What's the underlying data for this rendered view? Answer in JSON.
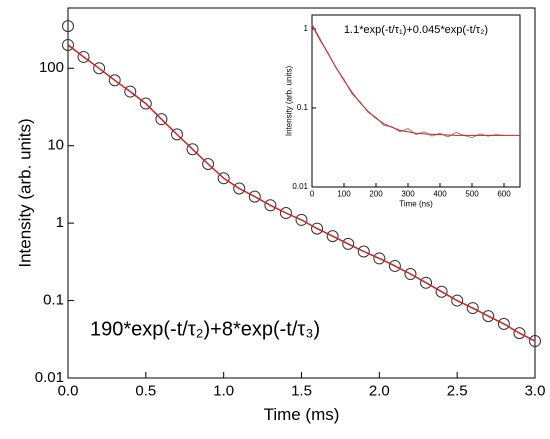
{
  "chart_data": [
    {
      "type": "line",
      "xlabel": "Time (ms)",
      "ylabel": "Intensity (arb. units)",
      "annotation": "190*exp(-t/τ₂)+8*exp(-t/τ₃)",
      "xlim": [
        0,
        3.0
      ],
      "ylim": [
        0.01,
        600
      ],
      "log_y": true,
      "xticks": [
        {
          "value": 0,
          "label": "0.0"
        },
        0.5,
        {
          "value": 1,
          "label": "1.0"
        },
        1.5,
        {
          "value": 2,
          "label": "2.0"
        },
        2.5,
        {
          "value": 3,
          "label": "3.0"
        }
      ],
      "yticks": [
        0.01,
        0.1,
        1,
        10,
        100
      ],
      "series": [
        {
          "color": "#333333",
          "marker": "circle",
          "x": [
            0,
            0,
            0.1,
            0.2,
            0.3,
            0.4,
            0.5,
            0.6,
            0.7,
            0.8,
            0.9,
            1.0,
            1.1,
            1.2,
            1.3,
            1.4,
            1.5,
            1.6,
            1.7,
            1.8,
            1.9,
            2.0,
            2.1,
            2.2,
            2.3,
            2.4,
            2.5,
            2.6,
            2.7,
            2.8,
            2.9,
            3.0
          ],
          "values": [
            350,
            200,
            140,
            100,
            70,
            50,
            35,
            22,
            14,
            9,
            5.8,
            3.8,
            2.8,
            2.2,
            1.7,
            1.35,
            1.1,
            0.85,
            0.68,
            0.54,
            0.43,
            0.35,
            0.28,
            0.22,
            0.17,
            0.13,
            0.1,
            0.08,
            0.063,
            0.05,
            0.038,
            0.03
          ]
        },
        {
          "color": "#d02020",
          "marker": "none",
          "x": [
            0,
            0.1,
            0.2,
            0.3,
            0.4,
            0.5,
            0.6,
            0.7,
            0.8,
            0.9,
            1.0,
            1.1,
            1.2,
            1.3,
            1.4,
            1.5,
            1.6,
            1.7,
            1.8,
            1.9,
            2.0,
            2.1,
            2.2,
            2.3,
            2.4,
            2.5,
            2.6,
            2.7,
            2.8,
            2.9,
            3.0
          ],
          "values": [
            200,
            140,
            100,
            70,
            50,
            35,
            22,
            14,
            9,
            5.8,
            3.8,
            2.8,
            2.2,
            1.7,
            1.35,
            1.1,
            0.85,
            0.68,
            0.54,
            0.43,
            0.35,
            0.28,
            0.22,
            0.17,
            0.13,
            0.1,
            0.08,
            0.063,
            0.05,
            0.038,
            0.03
          ]
        }
      ]
    },
    {
      "type": "line",
      "xlabel": "Time (ns)",
      "ylabel": "Intensity (arb. units)",
      "annotation": "1.1*exp(-t/τ₁)+0.045*exp(-t/τ₂)",
      "xlim": [
        0,
        650
      ],
      "ylim": [
        0.01,
        1.5
      ],
      "log_y": true,
      "xticks": [
        0,
        100,
        200,
        300,
        400,
        500,
        600
      ],
      "yticks": [
        0.01,
        0.1,
        1
      ],
      "series": [
        {
          "color": "#888888",
          "marker": "none",
          "x": [
            0,
            25,
            50,
            75,
            100,
            125,
            150,
            175,
            200,
            225,
            250,
            275,
            300,
            325,
            350,
            375,
            400,
            425,
            450,
            475,
            500,
            525,
            550,
            575,
            600
          ],
          "values": [
            1.1,
            0.72,
            0.5,
            0.32,
            0.23,
            0.15,
            0.12,
            0.088,
            0.076,
            0.06,
            0.058,
            0.05,
            0.055,
            0.046,
            0.05,
            0.044,
            0.048,
            0.043,
            0.049,
            0.045,
            0.042,
            0.047,
            0.044,
            0.046,
            0.045
          ]
        },
        {
          "color": "#d02020",
          "marker": "none",
          "x": [
            0,
            25,
            50,
            75,
            100,
            125,
            150,
            175,
            200,
            225,
            250,
            275,
            300,
            325,
            350,
            400,
            450,
            500,
            550,
            600,
            650
          ],
          "values": [
            1.145,
            0.743,
            0.488,
            0.326,
            0.224,
            0.158,
            0.117,
            0.091,
            0.074,
            0.063,
            0.057,
            0.052,
            0.05,
            0.048,
            0.047,
            0.046,
            0.045,
            0.045,
            0.045,
            0.045,
            0.045
          ]
        }
      ]
    }
  ]
}
